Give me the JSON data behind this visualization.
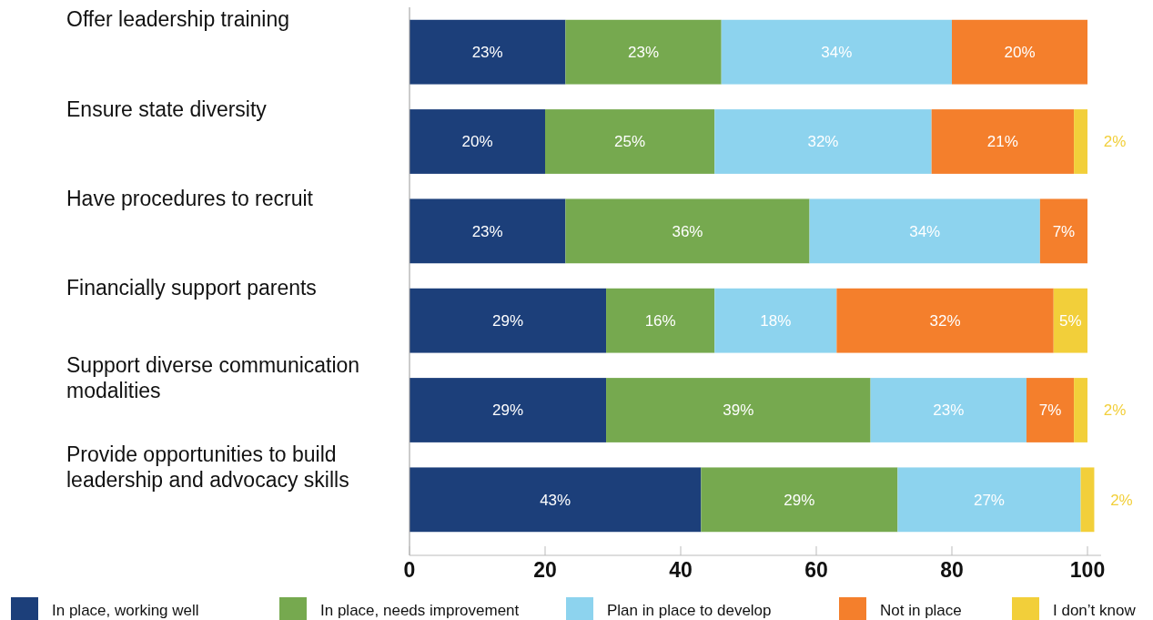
{
  "chart_data": {
    "type": "bar",
    "orientation": "horizontal",
    "stacked": true,
    "categories": [
      "Offer leadership training",
      "Ensure state diversity",
      "Have procedures to recruit",
      "Financially support parents",
      "Support diverse communication modalities",
      "Provide opportunities to build leadership and advocacy skills"
    ],
    "series": [
      {
        "name": "In place, working well",
        "color": "#1c3f7a",
        "values": [
          23,
          20,
          23,
          29,
          29,
          43
        ],
        "value_labels": [
          "23%",
          "20%",
          "23%",
          "29%",
          "29%",
          "43%"
        ]
      },
      {
        "name": "In place, needs improvement",
        "color": "#76a94f",
        "values": [
          23,
          25,
          36,
          16,
          39,
          29
        ],
        "value_labels": [
          "23%",
          "25%",
          "36%",
          "16%",
          "39%",
          "29%"
        ]
      },
      {
        "name": "Plan in place to develop",
        "color": "#8dd3ee",
        "values": [
          34,
          32,
          34,
          18,
          23,
          27
        ],
        "value_labels": [
          "34%",
          "32%",
          "34%",
          "18%",
          "23%",
          "27%"
        ]
      },
      {
        "name": "Not in place",
        "color": "#f47f2c",
        "values": [
          20,
          21,
          7,
          32,
          7,
          null
        ],
        "value_labels": [
          "20%",
          "21%",
          "7%",
          "32%",
          "7%",
          null
        ]
      },
      {
        "name": "I don’t know",
        "color": "#f2cf3a",
        "values": [
          null,
          2,
          null,
          5,
          2,
          2
        ],
        "value_labels": [
          null,
          "2%",
          null,
          "5%",
          "2%",
          "2%"
        ]
      }
    ],
    "xlim": [
      0,
      102
    ],
    "xticks": [
      0,
      20,
      40,
      60,
      80,
      100
    ],
    "grid": false,
    "legend": "bottom"
  }
}
